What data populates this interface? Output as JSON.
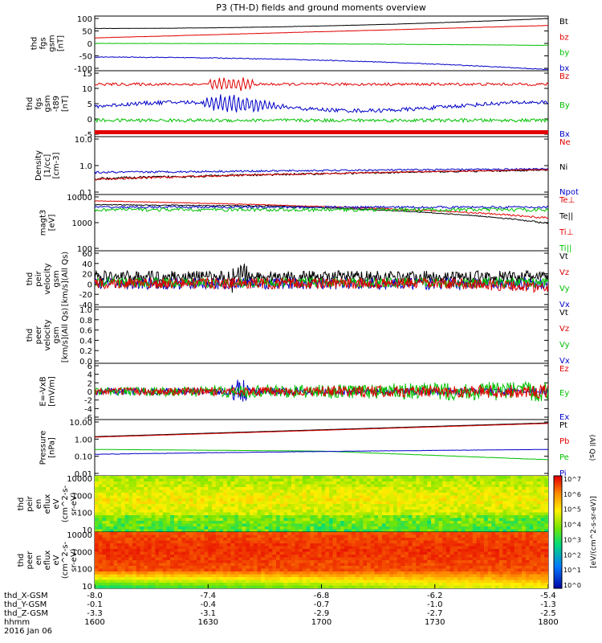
{
  "chart_data": {
    "type": "line",
    "title": "P3 (TH-D) fields and ground moments overview",
    "date": "2016 Jan 06",
    "x_ticks": [
      "1600",
      "1630",
      "1700",
      "1730",
      "1800"
    ],
    "x_label": "hhmm",
    "ephemeris": [
      {
        "label": "thd_X-GSM",
        "values": [
          "-8.0",
          "-7.4",
          "-6.8",
          "-6.2",
          "-5.4"
        ]
      },
      {
        "label": "thd_Y-GSM",
        "values": [
          "-0.1",
          "-0.4",
          "-0.7",
          "-1.0",
          "-1.3"
        ]
      },
      {
        "label": "thd_Z-GSM",
        "values": [
          "-3.3",
          "-3.1",
          "-2.9",
          "-2.7",
          "-2.5"
        ]
      }
    ],
    "panels": [
      {
        "ylabel": [
          "thd",
          "fgs",
          "gsm",
          "[nT]"
        ],
        "yticks": [
          "100",
          "50",
          "0",
          "-50",
          "-100"
        ],
        "legend": [
          {
            "name": "Bt",
            "color": "#000000"
          },
          {
            "name": "bz",
            "color": "#e00000"
          },
          {
            "name": "by",
            "color": "#00c000"
          },
          {
            "name": "bx",
            "color": "#0000c8"
          }
        ]
      },
      {
        "ylabel": [
          "thd",
          "fgs",
          "gsm",
          "-t89",
          "[nT]"
        ],
        "yticks": [
          "15",
          "10",
          "5",
          "0",
          "-5"
        ],
        "legend": [
          {
            "name": "Bz",
            "color": "#e00000"
          },
          {
            "name": "By",
            "color": "#00c000"
          },
          {
            "name": "Bx",
            "color": "#0000c8"
          }
        ]
      },
      {
        "ylabel": [
          "Density",
          "[1/cc]",
          "[cm-3]"
        ],
        "yticks": [
          "10.0",
          "1.0",
          "0.1"
        ],
        "legend": [
          {
            "name": "Ne",
            "color": "#e00000"
          },
          {
            "name": "Ni",
            "color": "#000000"
          },
          {
            "name": "Npot",
            "color": "#0000c8"
          }
        ]
      },
      {
        "ylabel": [
          "magt3",
          "[eV]"
        ],
        "yticks": [
          "10000",
          "1000",
          "100"
        ],
        "legend": [
          {
            "name": "Te⊥",
            "color": "#e00000"
          },
          {
            "name": "Te||",
            "color": "#000000"
          },
          {
            "name": "Ti⊥",
            "color": "#e00000"
          },
          {
            "name": "Ti||",
            "color": "#00c000"
          }
        ]
      },
      {
        "ylabel": [
          "thd",
          "peir",
          "velocity",
          "gsm",
          "[km/s](All Qs)"
        ],
        "yticks": [
          "60",
          "40",
          "20",
          "0",
          "-20",
          "-40"
        ],
        "legend": [
          {
            "name": "Vt",
            "color": "#000000"
          },
          {
            "name": "Vz",
            "color": "#e00000"
          },
          {
            "name": "Vy",
            "color": "#00c000"
          },
          {
            "name": "Vx",
            "color": "#0000c8"
          }
        ]
      },
      {
        "ylabel": [
          "thd",
          "peer",
          "velocity",
          "gsm",
          "[km/s](All Qs)"
        ],
        "yticks": [
          "1.0",
          "0.8",
          "0.6",
          "0.4",
          "0.2",
          "0.0"
        ],
        "legend": [
          {
            "name": "Vt",
            "color": "#000000"
          },
          {
            "name": "Vz",
            "color": "#e00000"
          },
          {
            "name": "Vy",
            "color": "#00c000"
          },
          {
            "name": "Vx",
            "color": "#0000c8"
          }
        ]
      },
      {
        "ylabel": [
          "E=-VxB",
          "[mV/m]"
        ],
        "yticks": [
          "6",
          "4",
          "2",
          "0",
          "-2",
          "-4",
          "-6"
        ],
        "legend": [
          {
            "name": "Ez",
            "color": "#e00000"
          },
          {
            "name": "Ey",
            "color": "#00c000"
          },
          {
            "name": "Ex",
            "color": "#0000c8"
          }
        ]
      },
      {
        "ylabel": [
          "Pressure",
          "[nPa]"
        ],
        "yticks": [
          "10.00",
          "1.00",
          "0.10",
          "0.01"
        ],
        "legend": [
          {
            "name": "Pt",
            "color": "#000000"
          },
          {
            "name": "Pb",
            "color": "#e00000"
          },
          {
            "name": "Pe",
            "color": "#00c000"
          },
          {
            "name": "Pi",
            "color": "#0000c8"
          }
        ],
        "annotation": "(All Qs)"
      },
      {
        "ylabel": [
          "thd",
          "peir",
          "en",
          "eflux",
          "eV",
          "(cm^2-s-",
          "sr-eV)"
        ],
        "yticks": [
          "10000",
          "1000",
          "100",
          "10"
        ]
      },
      {
        "ylabel": [
          "thd",
          "peer",
          "en",
          "eflux",
          "eV",
          "(cm^2-s-",
          "sr-eV)"
        ],
        "yticks": [
          "10000",
          "1000",
          "100",
          "10"
        ]
      }
    ],
    "colorbar": {
      "label": "[eV/(cm^2-s-sr-eV)]",
      "label2": "[eV/(cm^2-s-sr-eV)]",
      "ticks": [
        "10^7",
        "10^6",
        "10^5",
        "10^4",
        "10^3",
        "10^2",
        "10^1",
        "10^0"
      ]
    }
  }
}
